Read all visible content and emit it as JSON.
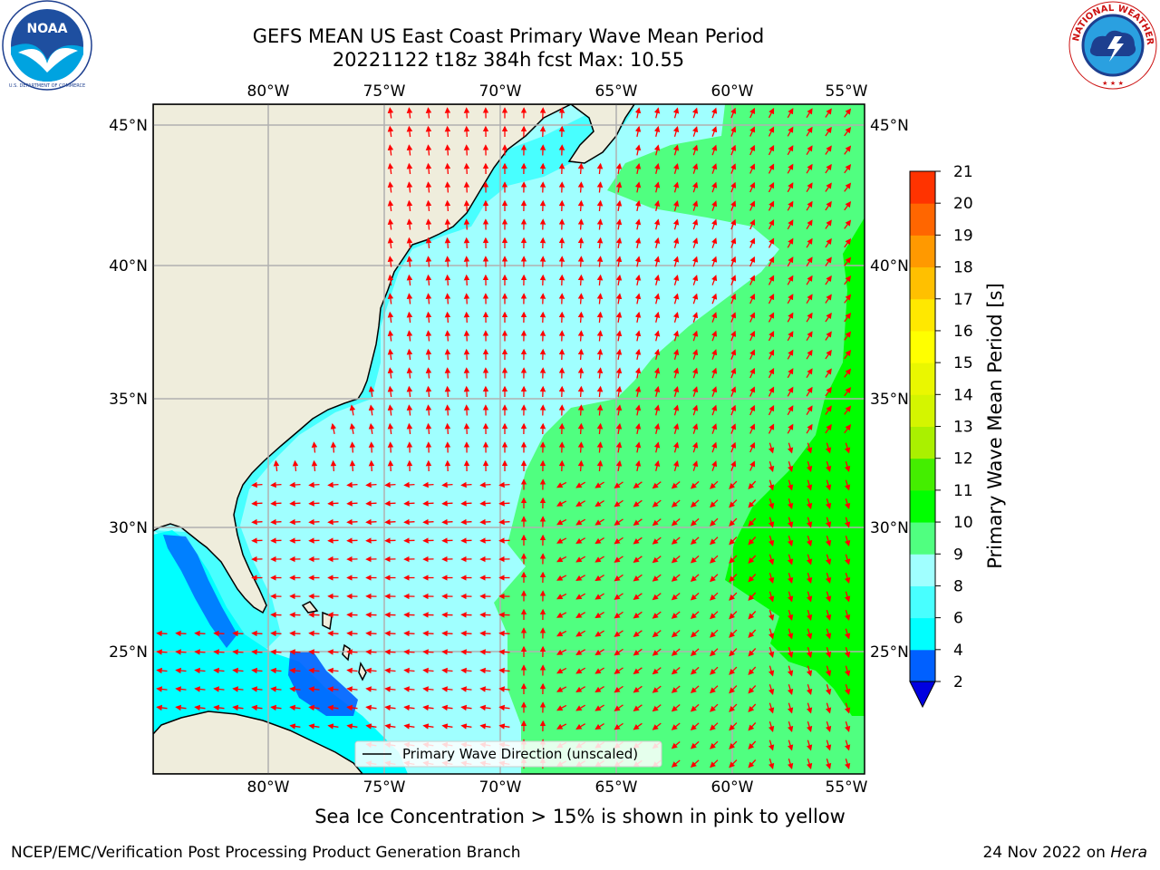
{
  "title_line1": "GEFS MEAN US East Coast Primary Wave Mean Period",
  "title_line2": "20221122 t18z 384h fcst   Max: 10.55",
  "lon_ticks": [
    "80°W",
    "75°W",
    "70°W",
    "65°W",
    "60°W",
    "55°W"
  ],
  "lat_ticks": [
    "45°N",
    "40°N",
    "35°N",
    "30°N",
    "25°N"
  ],
  "legend_label": "Primary Wave Direction (unscaled)",
  "colorbar": {
    "label": "Primary Wave Mean Period [s]",
    "ticks": [
      "2",
      "4",
      "6",
      "8",
      "9",
      "10",
      "11",
      "12",
      "13",
      "14",
      "15",
      "16",
      "17",
      "18",
      "19",
      "20",
      "21"
    ],
    "colors": [
      "#0060ff",
      "#00ffff",
      "#48ffff",
      "#a0ffff",
      "#50ff80",
      "#00ff00",
      "#44ee00",
      "#aaf000",
      "#d4f500",
      "#eaf700",
      "#ffff00",
      "#ffe800",
      "#ffc000",
      "#ff9900",
      "#ff6600",
      "#ff3300",
      "#ff0000"
    ],
    "extend_color": "#0000e0"
  },
  "footnote": "Sea Ice Concentration > 15% is shown in pink to yellow",
  "credit_left": "NCEP/EMC/Verification Post Processing Product Generation Branch",
  "credit_date": "24 Nov 2022 on",
  "credit_host": "Hera",
  "logo_left": {
    "text": "NOAA",
    "ring": "NATIONAL OCEANIC AND ATMOSPHERIC ADMINISTRATION · U.S. DEPARTMENT OF COMMERCE"
  },
  "logo_right": {
    "ring": "NATIONAL WEATHER SERVICE"
  },
  "chart_data": {
    "type": "map",
    "variable": "Primary Wave Mean Period [s]",
    "max": 10.55,
    "extent": {
      "lon": [
        -85,
        -54.2
      ],
      "lat": [
        20.3,
        46.1
      ]
    },
    "grid": true,
    "regions_approx": [
      {
        "area": "nearshore US coast",
        "period_s": "6-8"
      },
      {
        "area": "central Atlantic west of 67°W",
        "period_s": "8-9"
      },
      {
        "area": "east of ~67°W",
        "period_s": "9-10"
      },
      {
        "area": "far east 55-58°W, 23-32°N",
        "period_s": "10-11"
      },
      {
        "area": "Gulf / Bahamas banks",
        "period_s": "2-6"
      }
    ],
    "vectors": "Primary Wave Direction (unscaled)"
  }
}
